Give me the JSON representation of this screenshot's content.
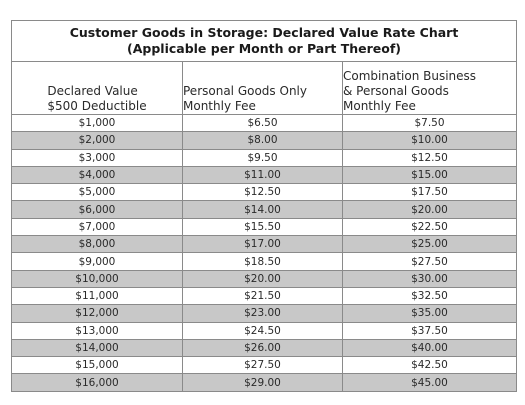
{
  "title": {
    "line1": "Customer Goods in Storage: Declared Value Rate Chart",
    "line2": "(Applicable per Month or Part Thereof)"
  },
  "columns": [
    {
      "lines": [
        "Declared Value",
        "$500 Deductible"
      ]
    },
    {
      "lines": [
        "Personal Goods Only",
        "Monthly Fee"
      ]
    },
    {
      "lines": [
        "Combination Business",
        "& Personal Goods",
        "Monthly Fee"
      ]
    }
  ],
  "rows": [
    [
      "$1,000",
      "$6.50",
      "$7.50"
    ],
    [
      "$2,000",
      "$8.00",
      "$10.00"
    ],
    [
      "$3,000",
      "$9.50",
      "$12.50"
    ],
    [
      "$4,000",
      "$11.00",
      "$15.00"
    ],
    [
      "$5,000",
      "$12.50",
      "$17.50"
    ],
    [
      "$6,000",
      "$14.00",
      "$20.00"
    ],
    [
      "$7,000",
      "$15.50",
      "$22.50"
    ],
    [
      "$8,000",
      "$17.00",
      "$25.00"
    ],
    [
      "$9,000",
      "$18.50",
      "$27.50"
    ],
    [
      "$10,000",
      "$20.00",
      "$30.00"
    ],
    [
      "$11,000",
      "$21.50",
      "$32.50"
    ],
    [
      "$12,000",
      "$23.00",
      "$35.00"
    ],
    [
      "$13,000",
      "$24.50",
      "$37.50"
    ],
    [
      "$14,000",
      "$26.00",
      "$40.00"
    ],
    [
      "$15,000",
      "$27.50",
      "$42.50"
    ],
    [
      "$16,000",
      "$29.00",
      "$45.00"
    ]
  ],
  "colors": {
    "alt_row_fill": "#c8c8c8",
    "border": "#8a8a8a"
  }
}
